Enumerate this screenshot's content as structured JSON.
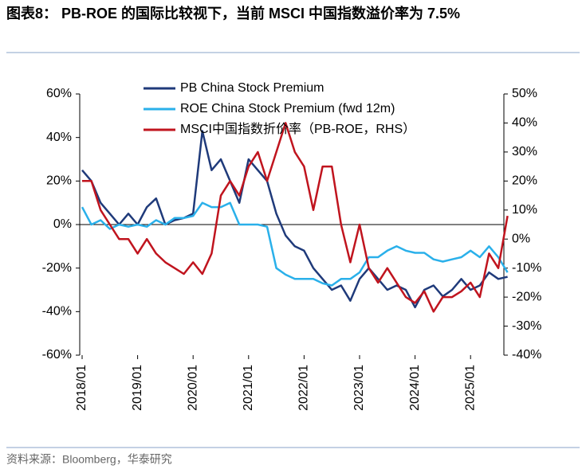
{
  "chart_data": {
    "type": "line",
    "title": "图表8： PB-ROE 的国际比较视下，当前 MSCI 中国指数溢价率为 7.5%",
    "source": "资料来源：Bloomberg，华泰研究",
    "x": [
      "2018/01",
      "2018/03",
      "2018/05",
      "2018/07",
      "2018/09",
      "2018/11",
      "2019/01",
      "2019/03",
      "2019/05",
      "2019/07",
      "2019/09",
      "2019/11",
      "2020/01",
      "2020/03",
      "2020/05",
      "2020/07",
      "2020/09",
      "2020/11",
      "2021/01",
      "2021/03",
      "2021/05",
      "2021/07",
      "2021/09",
      "2021/11",
      "2022/01",
      "2022/03",
      "2022/05",
      "2022/07",
      "2022/09",
      "2022/11",
      "2023/01",
      "2023/03",
      "2023/05",
      "2023/07",
      "2023/09",
      "2023/11",
      "2024/01",
      "2024/03",
      "2024/05",
      "2024/07",
      "2024/09",
      "2024/11",
      "2025/01",
      "2025/03",
      "2025/05",
      "2025/07",
      "2025/09"
    ],
    "xticks": [
      "2018/01",
      "2019/01",
      "2020/01",
      "2021/01",
      "2022/01",
      "2023/01",
      "2024/01",
      "2025/01"
    ],
    "ylim": [
      -60,
      60
    ],
    "yticks": [
      {
        "value": -60,
        "label": "-60%"
      },
      {
        "value": -40,
        "label": "-40%"
      },
      {
        "value": -20,
        "label": "-20%"
      },
      {
        "value": 0,
        "label": "0%"
      },
      {
        "value": 20,
        "label": "20%"
      },
      {
        "value": 40,
        "label": "40%"
      },
      {
        "value": 60,
        "label": "60%"
      }
    ],
    "y2lim": [
      -40,
      50
    ],
    "y2ticks": [
      {
        "value": -40,
        "label": "-40%"
      },
      {
        "value": -30,
        "label": "-30%"
      },
      {
        "value": -20,
        "label": "-20%"
      },
      {
        "value": -10,
        "label": "-10%"
      },
      {
        "value": 0,
        "label": "0%"
      },
      {
        "value": 10,
        "label": "10%"
      },
      {
        "value": 20,
        "label": "20%"
      },
      {
        "value": 30,
        "label": "30%"
      },
      {
        "value": 40,
        "label": "40%"
      },
      {
        "value": 50,
        "label": "50%"
      }
    ],
    "series": [
      {
        "name": "PB China Stock Premium",
        "color": "#1f3a7a",
        "values": [
          25,
          20,
          10,
          5,
          0,
          5,
          0,
          8,
          12,
          0,
          2,
          3,
          5,
          43,
          25,
          30,
          20,
          10,
          30,
          25,
          20,
          5,
          -5,
          -10,
          -12,
          -20,
          -25,
          -30,
          -28,
          -35,
          -25,
          -20,
          -25,
          -30,
          -28,
          -30,
          -38,
          -30,
          -28,
          -33,
          -30,
          -25,
          -30,
          -28,
          -22,
          -25,
          -24
        ]
      },
      {
        "name": "ROE China Stock Premium (fwd 12m)",
        "color": "#2ab0ea",
        "values": [
          8,
          0,
          2,
          -2,
          0,
          -1,
          0,
          -1,
          2,
          0,
          3,
          3,
          4,
          10,
          8,
          8,
          10,
          0,
          0,
          0,
          -1,
          -20,
          -23,
          -25,
          -25,
          -25,
          -27,
          -28,
          -25,
          -25,
          -22,
          -15,
          -15,
          -12,
          -10,
          -12,
          -13,
          -13,
          -16,
          -17,
          -16,
          -15,
          -12,
          -15,
          -10,
          -15,
          -22
        ]
      },
      {
        "name": "MSCI中国指数折价率（PB-ROE，RHS）",
        "color": "#c0141e",
        "axis": "y2",
        "values": [
          20,
          20,
          10,
          5,
          0,
          0,
          -5,
          0,
          -5,
          -8,
          -10,
          -12,
          -8,
          -12,
          -5,
          15,
          20,
          15,
          25,
          30,
          20,
          30,
          40,
          30,
          25,
          10,
          25,
          25,
          5,
          -8,
          5,
          -10,
          -15,
          -10,
          -15,
          -20,
          -22,
          -18,
          -25,
          -20,
          -20,
          -18,
          -15,
          -20,
          -5,
          -10,
          8
        ]
      }
    ]
  }
}
